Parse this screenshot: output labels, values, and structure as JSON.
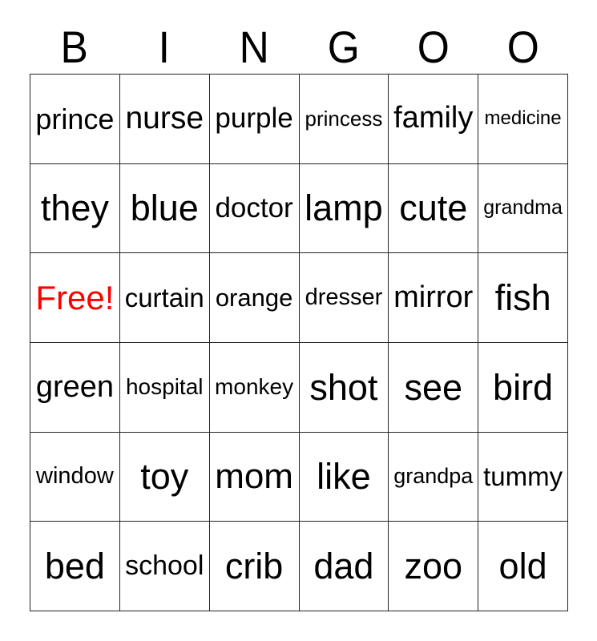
{
  "card": {
    "header_letters": [
      "B",
      "I",
      "N",
      "G",
      "O",
      "O"
    ],
    "colors": {
      "text": "#000000",
      "free_text": "#ff0000",
      "grid_line": "#242424",
      "background": "#ffffff"
    },
    "free_cell": {
      "row": 2,
      "col": 0,
      "label": "Free!"
    },
    "rows": [
      [
        "prince",
        "nurse",
        "purple",
        "princess",
        "family",
        "medicine"
      ],
      [
        "they",
        "blue",
        "doctor",
        "lamp",
        "cute",
        "grandma"
      ],
      [
        "Free!",
        "curtain",
        "orange",
        "dresser",
        "mirror",
        "fish"
      ],
      [
        "green",
        "hospital",
        "monkey",
        "shot",
        "see",
        "bird"
      ],
      [
        "window",
        "toy",
        "mom",
        "like",
        "grandpa",
        "tummy"
      ],
      [
        "bed",
        "school",
        "crib",
        "dad",
        "zoo",
        "old"
      ]
    ]
  }
}
